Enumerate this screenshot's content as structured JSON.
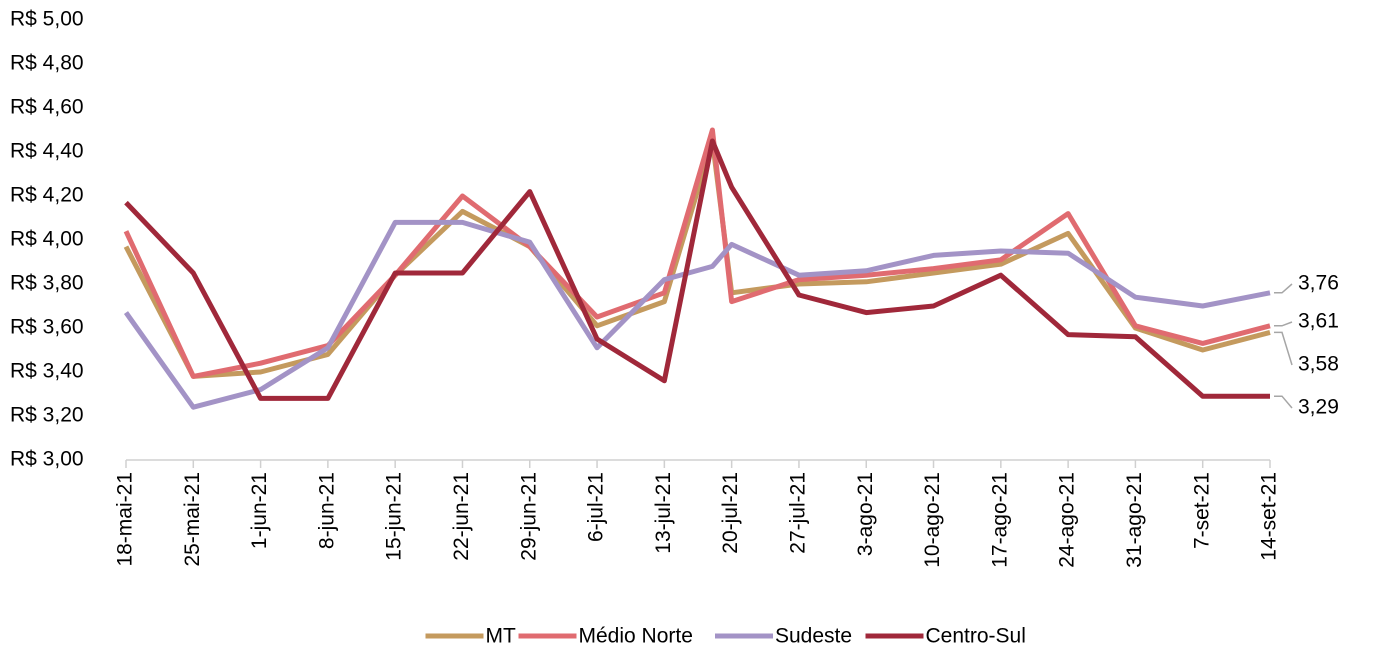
{
  "chart_data": {
    "type": "line",
    "x": [
      "2021-05-18",
      "2021-05-25",
      "2021-06-01",
      "2021-06-08",
      "2021-06-15",
      "2021-06-22",
      "2021-06-29",
      "2021-07-06",
      "2021-07-13",
      "2021-07-18",
      "2021-07-20",
      "2021-07-27",
      "2021-08-03",
      "2021-08-10",
      "2021-08-17",
      "2021-08-24",
      "2021-08-31",
      "2021-09-07",
      "2021-09-14"
    ],
    "xlim": [
      "2021-05-18",
      "2021-09-14"
    ],
    "xticks": [
      {
        "value": "2021-05-18",
        "label": "18-mai-21"
      },
      {
        "value": "2021-05-25",
        "label": "25-mai-21"
      },
      {
        "value": "2021-06-01",
        "label": "1-jun-21"
      },
      {
        "value": "2021-06-08",
        "label": "8-jun-21"
      },
      {
        "value": "2021-06-15",
        "label": "15-jun-21"
      },
      {
        "value": "2021-06-22",
        "label": "22-jun-21"
      },
      {
        "value": "2021-06-29",
        "label": "29-jun-21"
      },
      {
        "value": "2021-07-06",
        "label": "6-jul-21"
      },
      {
        "value": "2021-07-13",
        "label": "13-jul-21"
      },
      {
        "value": "2021-07-20",
        "label": "20-jul-21"
      },
      {
        "value": "2021-07-27",
        "label": "27-jul-21"
      },
      {
        "value": "2021-08-03",
        "label": "3-ago-21"
      },
      {
        "value": "2021-08-10",
        "label": "10-ago-21"
      },
      {
        "value": "2021-08-17",
        "label": "17-ago-21"
      },
      {
        "value": "2021-08-24",
        "label": "24-ago-21"
      },
      {
        "value": "2021-08-31",
        "label": "31-ago-21"
      },
      {
        "value": "2021-09-07",
        "label": "7-set-21"
      },
      {
        "value": "2021-09-14",
        "label": "14-set-21"
      }
    ],
    "ylim": [
      3,
      5
    ],
    "yticks": [
      {
        "value": 3,
        "label": "R$ 3,00"
      },
      {
        "value": 3.2,
        "label": "R$ 3,20"
      },
      {
        "value": 3.4,
        "label": "R$ 3,40"
      },
      {
        "value": 3.6,
        "label": "R$ 3,60"
      },
      {
        "value": 3.8,
        "label": "R$ 3,80"
      },
      {
        "value": 4,
        "label": "R$ 4,00"
      },
      {
        "value": 4.2,
        "label": "R$ 4,20"
      },
      {
        "value": 4.4,
        "label": "R$ 4,40"
      },
      {
        "value": 4.6,
        "label": "R$ 4,60"
      },
      {
        "value": 4.8,
        "label": "R$ 4,80"
      },
      {
        "value": 5,
        "label": "R$ 5,00"
      }
    ],
    "legend": "bottom",
    "series": [
      {
        "name": "MT",
        "color": "#c49a5e",
        "values": [
          3.97,
          3.38,
          3.4,
          3.48,
          3.84,
          4.13,
          3.97,
          3.61,
          3.72,
          4.45,
          3.76,
          3.8,
          3.81,
          3.85,
          3.89,
          4.03,
          3.6,
          3.5,
          3.58
        ],
        "value_labels": [
          null,
          null,
          null,
          null,
          null,
          null,
          null,
          null,
          null,
          null,
          null,
          null,
          null,
          null,
          null,
          null,
          null,
          null,
          "3,58"
        ]
      },
      {
        "name": "Médio Norte",
        "color": "#e06b70",
        "values": [
          4.04,
          3.38,
          3.44,
          3.52,
          3.84,
          4.2,
          3.97,
          3.65,
          3.76,
          4.5,
          3.72,
          3.82,
          3.84,
          3.87,
          3.91,
          4.12,
          3.61,
          3.53,
          3.61
        ],
        "value_labels": [
          null,
          null,
          null,
          null,
          null,
          null,
          null,
          null,
          null,
          null,
          null,
          null,
          null,
          null,
          null,
          null,
          null,
          null,
          "3,61"
        ]
      },
      {
        "name": "Sudeste",
        "color": "#a393c6",
        "values": [
          3.67,
          3.24,
          3.32,
          3.51,
          4.08,
          4.08,
          3.99,
          3.51,
          3.82,
          3.88,
          3.98,
          3.84,
          3.86,
          3.93,
          3.95,
          3.94,
          3.74,
          3.7,
          3.76
        ],
        "value_labels": [
          null,
          null,
          null,
          null,
          null,
          null,
          null,
          null,
          null,
          null,
          null,
          null,
          null,
          null,
          null,
          null,
          null,
          null,
          "3,76"
        ]
      },
      {
        "name": "Centro-Sul",
        "color": "#a0283a",
        "values": [
          4.17,
          3.85,
          3.28,
          3.28,
          3.85,
          3.85,
          4.22,
          3.55,
          3.36,
          4.45,
          4.24,
          3.75,
          3.67,
          3.7,
          3.84,
          3.57,
          3.56,
          3.29,
          3.29
        ],
        "value_labels": [
          null,
          null,
          null,
          null,
          null,
          null,
          null,
          null,
          null,
          null,
          null,
          null,
          null,
          null,
          null,
          null,
          null,
          null,
          "3,29"
        ]
      }
    ]
  }
}
